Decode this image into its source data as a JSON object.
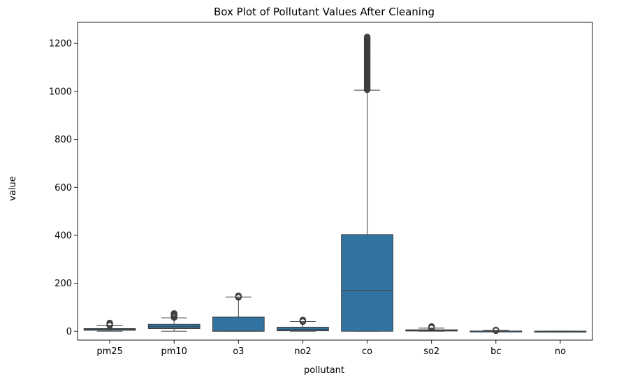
{
  "chart_data": {
    "type": "box",
    "title": "Box Plot of Pollutant Values After Cleaning",
    "xlabel": "pollutant",
    "ylabel": "value",
    "ylim": [
      -37,
      1288
    ],
    "yticks": [
      0,
      200,
      400,
      600,
      800,
      1000,
      1200
    ],
    "grid": false,
    "box_color": "#3274a1",
    "line_color": "#3d3d3d",
    "categories": [
      "pm25",
      "pm10",
      "o3",
      "no2",
      "co",
      "so2",
      "bc",
      "no"
    ],
    "boxes": [
      {
        "name": "pm25",
        "whisker_low": 0,
        "q1": 4,
        "median": 8,
        "q3": 11,
        "whisker_high": 23,
        "outliers_min": 24,
        "outliers_max": 37
      },
      {
        "name": "pm10",
        "whisker_low": 0,
        "q1": 11,
        "median": 19,
        "q3": 29,
        "whisker_high": 56,
        "outliers_min": 57,
        "outliers_max": 76
      },
      {
        "name": "o3",
        "whisker_low": 0,
        "q1": 0,
        "median": 0,
        "q3": 59,
        "whisker_high": 143,
        "outliers_min": 141,
        "outliers_max": 149
      },
      {
        "name": "no2",
        "whisker_low": 0,
        "q1": 2,
        "median": 8,
        "q3": 17,
        "whisker_high": 40,
        "outliers_min": 40,
        "outliers_max": 50
      },
      {
        "name": "co",
        "whisker_low": 0,
        "q1": 0,
        "median": 169,
        "q3": 403,
        "whisker_high": 1005,
        "outliers_min": 1007,
        "outliers_max": 1228
      },
      {
        "name": "so2",
        "whisker_low": 0,
        "q1": 1,
        "median": 3,
        "q3": 6,
        "whisker_high": 13,
        "outliers_min": 13,
        "outliers_max": 20
      },
      {
        "name": "bc",
        "whisker_low": 0,
        "q1": 0,
        "median": 0.5,
        "q3": 1,
        "whisker_high": 3,
        "outliers_min": 2,
        "outliers_max": 6
      },
      {
        "name": "no",
        "whisker_low": 0,
        "q1": 0,
        "median": 0,
        "q3": 0.3,
        "whisker_high": 0.6,
        "outliers_min": null,
        "outliers_max": null
      }
    ]
  }
}
